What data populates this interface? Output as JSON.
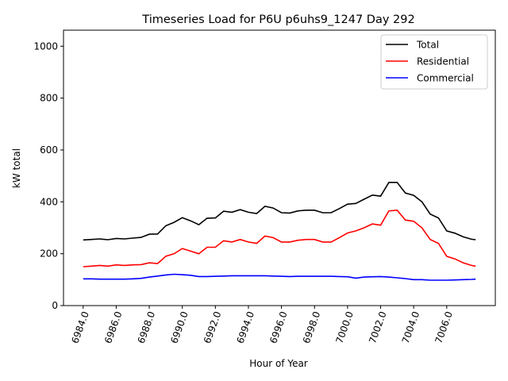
{
  "chart_data": {
    "type": "line",
    "title": "Timeseries Load for P6U p6uhs9_1247  Day 292",
    "xlabel": "Hour of Year",
    "ylabel": "kW total",
    "xlim": [
      6982.81,
      7008.94
    ],
    "ylim": [
      0,
      1062
    ],
    "xticks": [
      6984,
      6986,
      6988,
      6990,
      6992,
      6994,
      6996,
      6998,
      7000,
      7002,
      7004,
      7006
    ],
    "xtick_labels": [
      "6984.0",
      "6986.0",
      "6988.0",
      "6990.0",
      "6992.0",
      "6994.0",
      "6996.0",
      "6998.0",
      "7000.0",
      "7002.0",
      "7004.0",
      "7006.0"
    ],
    "yticks": [
      0,
      200,
      400,
      600,
      800,
      1000
    ],
    "ytick_labels": [
      "0",
      "200",
      "400",
      "600",
      "800",
      "1000"
    ],
    "legend_position": "top-right",
    "x": [
      6984,
      6984.5,
      6985,
      6985.5,
      6986,
      6986.5,
      6987,
      6987.5,
      6988,
      6988.5,
      6989,
      6989.5,
      6990,
      6990.5,
      6991,
      6991.5,
      6992,
      6992.5,
      6993,
      6993.5,
      6994,
      6994.5,
      6995,
      6995.5,
      6996,
      6996.5,
      6997,
      6997.5,
      6998,
      6998.5,
      6999,
      6999.5,
      7000,
      7000.5,
      7001,
      7001.5,
      7002,
      7002.5,
      7003,
      7003.5,
      7004,
      7004.5,
      7005,
      7005.5,
      7006,
      7006.5,
      7007,
      7007.5,
      7007.75
    ],
    "series": [
      {
        "name": "Total",
        "color": "#000000",
        "values": [
          253,
          255,
          257,
          254,
          259,
          257,
          260,
          263,
          275,
          276,
          308,
          321,
          339,
          327,
          312,
          337,
          338,
          364,
          360,
          370,
          360,
          355,
          383,
          376,
          358,
          357,
          365,
          368,
          368,
          358,
          358,
          374,
          391,
          394,
          410,
          426,
          422,
          475,
          475,
          434,
          425,
          400,
          353,
          338,
          288,
          279,
          265,
          256,
          254
        ]
      },
      {
        "name": "Residential",
        "color": "#ff0000",
        "values": [
          150,
          152,
          155,
          152,
          157,
          155,
          157,
          158,
          165,
          162,
          190,
          200,
          220,
          210,
          200,
          225,
          225,
          250,
          245,
          255,
          245,
          240,
          268,
          262,
          245,
          245,
          252,
          255,
          255,
          245,
          245,
          262,
          280,
          288,
          300,
          315,
          310,
          365,
          368,
          330,
          325,
          300,
          255,
          240,
          190,
          180,
          165,
          155,
          152
        ]
      },
      {
        "name": "Commercial",
        "color": "#0000ff",
        "values": [
          103,
          103,
          102,
          102,
          102,
          102,
          103,
          105,
          110,
          114,
          118,
          121,
          119,
          117,
          112,
          112,
          113,
          114,
          115,
          115,
          115,
          115,
          115,
          114,
          113,
          112,
          113,
          113,
          113,
          113,
          113,
          112,
          111,
          106,
          110,
          111,
          112,
          110,
          107,
          104,
          100,
          100,
          98,
          98,
          98,
          99,
          100,
          101,
          102
        ]
      }
    ]
  }
}
